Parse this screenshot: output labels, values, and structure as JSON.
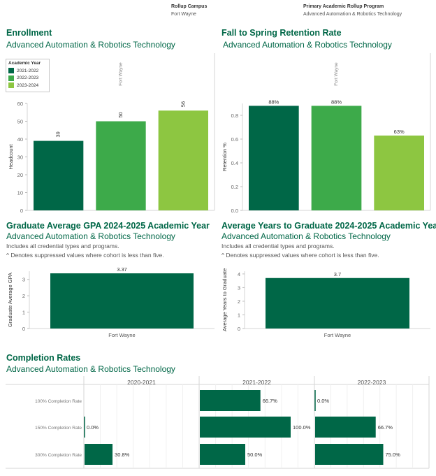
{
  "colors": {
    "dark": "#006747",
    "mid": "#3daa4a",
    "light": "#8dc641",
    "title": "#006747"
  },
  "filters": {
    "campus_label": "Rollup Campus",
    "campus_value": "Fort Wayne",
    "program_label": "Primary Academic Rollup Program",
    "program_value": "Advanced Automation & Robotics Technology"
  },
  "legend": {
    "title": "Academic Year",
    "items": [
      {
        "label": "2021-2022",
        "color": "#006747"
      },
      {
        "label": "2022-2023",
        "color": "#3daa4a"
      },
      {
        "label": "2023-2024",
        "color": "#8dc641"
      }
    ]
  },
  "enrollment": {
    "title": "Enrollment",
    "subtitle": "Advanced Automation & Robotics Technology"
  },
  "retention": {
    "title": "Fall to Spring Retention Rate",
    "subtitle": "Advanced Automation & Robotics Technology"
  },
  "gpa": {
    "title": "Graduate Average GPA 2024-2025 Academic Year",
    "subtitle": "Advanced Automation & Robotics Technology",
    "note1": "Includes all credential types and programs.",
    "note2": "^ Denotes suppressed values where cohort is less than five."
  },
  "years": {
    "title": "Average Years to Graduate 2024-2025 Academic Year",
    "subtitle": "Advanced Automation & Robotics Technology",
    "note1": "Includes all credential types and programs.",
    "note2": "^ Denotes suppressed values where cohort is less than five."
  },
  "completion": {
    "title": "Completion Rates",
    "subtitle": "Advanced Automation & Robotics Technology"
  },
  "chart_data": [
    {
      "id": "enrollment",
      "type": "bar",
      "header": "Fort Wayne",
      "categories": [
        "2021-2022",
        "2022-2023",
        "2023-2024"
      ],
      "values": [
        39,
        50,
        56
      ],
      "labels": [
        "39",
        "50",
        "56"
      ],
      "colors": [
        "#006747",
        "#3daa4a",
        "#8dc641"
      ],
      "ylabel": "Headcount",
      "ylim": [
        0,
        60
      ],
      "yticks": [
        0,
        10,
        20,
        30,
        40,
        50,
        60
      ],
      "ytick_labels": [
        "0",
        "10",
        "20",
        "30",
        "40",
        "50",
        "60"
      ]
    },
    {
      "id": "retention",
      "type": "bar",
      "header": "Fort Wayne",
      "categories": [
        "2021-2022",
        "2022-2023",
        "2023-2024"
      ],
      "values": [
        0.88,
        0.88,
        0.63
      ],
      "labels": [
        "88%",
        "88%",
        "63%"
      ],
      "colors": [
        "#006747",
        "#3daa4a",
        "#8dc641"
      ],
      "ylabel": "Retention %",
      "ylim": [
        0,
        0.9
      ],
      "yticks": [
        0,
        0.2,
        0.4,
        0.6,
        0.8
      ],
      "ytick_labels": [
        "0.0",
        "0.2",
        "0.4",
        "0.6",
        "0.8"
      ]
    },
    {
      "id": "gpa",
      "type": "bar",
      "categories": [
        "Fort Wayne"
      ],
      "values": [
        3.37
      ],
      "labels": [
        "3.37"
      ],
      "colors": [
        "#006747"
      ],
      "ylabel": "Graduate Average GPA",
      "ylim": [
        0,
        3.5
      ],
      "yticks": [
        0,
        1,
        2,
        3
      ],
      "ytick_labels": [
        "0",
        "1",
        "2",
        "3"
      ]
    },
    {
      "id": "years",
      "type": "bar",
      "categories": [
        "Fort Wayne"
      ],
      "values": [
        3.7
      ],
      "labels": [
        "3.7"
      ],
      "colors": [
        "#006747"
      ],
      "ylabel": "Average Years to Graduate",
      "ylim": [
        0,
        4.2
      ],
      "yticks": [
        0,
        1,
        2,
        3,
        4
      ],
      "ytick_labels": [
        "0",
        "1",
        "2",
        "3",
        "4"
      ]
    },
    {
      "id": "completion",
      "type": "bar",
      "orientation": "horizontal",
      "panels": [
        "2020-2021",
        "2021-2022",
        "2022-2023"
      ],
      "categories": [
        "100% Completion Rate",
        "150% Completion Rate",
        "300% Completion Rate"
      ],
      "xlim": [
        0,
        1.25
      ],
      "values": [
        [
          null,
          0.0,
          0.308
        ],
        [
          0.667,
          1.0,
          0.5
        ],
        [
          0.0,
          0.667,
          0.75
        ]
      ],
      "labels": [
        [
          "",
          "0.0%",
          "30.8%"
        ],
        [
          "66.7%",
          "100.0%",
          "50.0%"
        ],
        [
          "0.0%",
          "66.7%",
          "75.0%"
        ]
      ],
      "color": "#006747"
    }
  ]
}
